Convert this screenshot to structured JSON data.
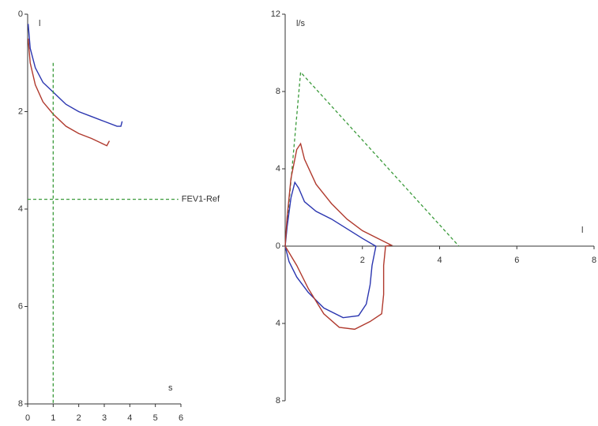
{
  "chart_data": [
    {
      "type": "line",
      "y_inverted": true,
      "axes": "box-left-bottom",
      "y_label": "l",
      "x_label": "s",
      "xlim": [
        0,
        6
      ],
      "xticks": [
        0,
        1,
        2,
        3,
        4,
        5,
        6
      ],
      "ylim": [
        0,
        8
      ],
      "yticks": [
        0,
        2,
        4,
        6,
        8
      ],
      "series": [
        {
          "color": "#2b36b0",
          "x": [
            0.02,
            0.1,
            0.3,
            0.6,
            1,
            1.5,
            2,
            2.5,
            3,
            3.5,
            3.65,
            3.7
          ],
          "y": [
            0.2,
            0.7,
            1.1,
            1.4,
            1.6,
            1.85,
            2.0,
            2.1,
            2.2,
            2.3,
            2.3,
            2.2
          ]
        },
        {
          "color": "#b03a2e",
          "x": [
            0.02,
            0.1,
            0.3,
            0.6,
            1,
            1.5,
            2,
            2.5,
            3.1,
            3.2
          ],
          "y": [
            0.5,
            1.0,
            1.45,
            1.8,
            2.05,
            2.3,
            2.45,
            2.55,
            2.7,
            2.6
          ]
        },
        {
          "color": "#3a9a3a",
          "dash": true,
          "x": [
            1,
            1
          ],
          "y": [
            1,
            8
          ]
        },
        {
          "name": "FEV1-Ref",
          "color": "#3a9a3a",
          "dash": true,
          "x": [
            0,
            5.9
          ],
          "y": [
            3.8,
            3.8
          ]
        }
      ]
    },
    {
      "type": "line",
      "y_inverted": false,
      "axes": "origin",
      "y_label": "l/s",
      "x_label": "l",
      "xlim": [
        0,
        8
      ],
      "xticks": [
        2,
        4,
        6,
        8
      ],
      "ylim": [
        -8,
        12
      ],
      "yticks": [
        {
          "value": -8,
          "label": "8"
        },
        {
          "value": -4,
          "label": "4"
        },
        0,
        4,
        8,
        12
      ],
      "series": [
        {
          "color": "#3a9a3a",
          "dash": true,
          "x": [
            0,
            0.4,
            4.5
          ],
          "y": [
            0,
            9,
            0
          ]
        },
        {
          "color": "#2b36b0",
          "x": [
            0,
            0.05,
            0.15,
            0.25,
            0.35,
            0.5,
            0.8,
            1.2,
            1.6,
            2,
            2.3,
            2.35,
            2.25,
            2.2,
            2.1,
            1.9,
            1.5,
            1.0,
            0.6,
            0.3,
            0.1,
            0
          ],
          "y": [
            0,
            1,
            2.5,
            3.3,
            3.0,
            2.3,
            1.8,
            1.4,
            0.9,
            0.4,
            0.05,
            0,
            -1,
            -2,
            -3,
            -3.6,
            -3.7,
            -3.2,
            -2.4,
            -1.6,
            -0.8,
            0
          ]
        },
        {
          "color": "#b03a2e",
          "x": [
            0,
            0.05,
            0.15,
            0.3,
            0.4,
            0.5,
            0.8,
            1.2,
            1.6,
            2,
            2.4,
            2.75,
            2.6,
            2.55,
            2.55,
            2.5,
            2.2,
            1.8,
            1.4,
            1,
            0.6,
            0.3,
            0
          ],
          "y": [
            0,
            1.5,
            3.5,
            5,
            5.3,
            4.5,
            3.2,
            2.2,
            1.4,
            0.8,
            0.4,
            0.05,
            0,
            -1,
            -2.5,
            -3.5,
            -3.9,
            -4.3,
            -4.2,
            -3.5,
            -2.2,
            -1,
            0
          ]
        }
      ]
    }
  ]
}
